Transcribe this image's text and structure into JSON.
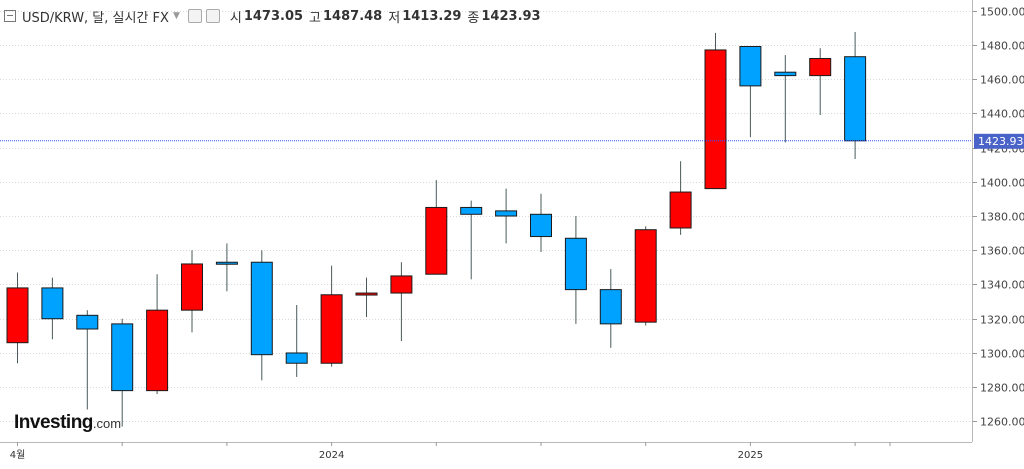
{
  "header": {
    "title": "USD/KRW, 달, 실시간 FX",
    "open_label": "시",
    "open_value": "1473.05",
    "high_label": "고",
    "high_value": "1487.48",
    "low_label": "저",
    "low_value": "1413.29",
    "close_label": "종",
    "close_value": "1423.93"
  },
  "logo": {
    "brand": "Investing",
    "suffix": ".com"
  },
  "colors": {
    "up": "#ff0000",
    "down": "#00a2ff",
    "wick": "#4a5a5a",
    "price_line": "#3355ff",
    "price_tag": "#4a63c9"
  },
  "chart_data": {
    "type": "candlestick",
    "interval": "monthly",
    "series": [
      {
        "open": 1338,
        "high": 1347,
        "low": 1294,
        "close": 1306,
        "dir": "up"
      },
      {
        "open": 1320,
        "high": 1344,
        "low": 1308,
        "close": 1338,
        "dir": "down"
      },
      {
        "open": 1314,
        "high": 1325,
        "low": 1267,
        "close": 1322,
        "dir": "down"
      },
      {
        "open": 1278,
        "high": 1320,
        "low": 1257,
        "close": 1317,
        "dir": "down"
      },
      {
        "open": 1325,
        "high": 1346,
        "low": 1276,
        "close": 1278,
        "dir": "up"
      },
      {
        "open": 1352,
        "high": 1360,
        "low": 1312,
        "close": 1325,
        "dir": "up"
      },
      {
        "open": 1352,
        "high": 1364,
        "low": 1336,
        "close": 1353,
        "dir": "down"
      },
      {
        "open": 1299,
        "high": 1360,
        "low": 1284,
        "close": 1353,
        "dir": "down"
      },
      {
        "open": 1294,
        "high": 1328,
        "low": 1286,
        "close": 1300,
        "dir": "down"
      },
      {
        "open": 1334,
        "high": 1351,
        "low": 1292,
        "close": 1294,
        "dir": "up"
      },
      {
        "open": 1335,
        "high": 1344,
        "low": 1321,
        "close": 1334,
        "dir": "up"
      },
      {
        "open": 1345,
        "high": 1353,
        "low": 1307,
        "close": 1335,
        "dir": "up"
      },
      {
        "open": 1385,
        "high": 1401,
        "low": 1348,
        "close": 1346,
        "dir": "up"
      },
      {
        "open": 1381,
        "high": 1389,
        "low": 1343,
        "close": 1385,
        "dir": "down"
      },
      {
        "open": 1383,
        "high": 1396,
        "low": 1364,
        "close": 1380,
        "dir": "down"
      },
      {
        "open": 1368,
        "high": 1393,
        "low": 1359,
        "close": 1381,
        "dir": "down"
      },
      {
        "open": 1337,
        "high": 1380,
        "low": 1317,
        "close": 1367,
        "dir": "down"
      },
      {
        "open": 1317,
        "high": 1349,
        "low": 1303,
        "close": 1337,
        "dir": "down"
      },
      {
        "open": 1372,
        "high": 1374,
        "low": 1316,
        "close": 1318,
        "dir": "up"
      },
      {
        "open": 1394,
        "high": 1412,
        "low": 1369,
        "close": 1373,
        "dir": "up"
      },
      {
        "open": 1477,
        "high": 1487,
        "low": 1396,
        "close": 1396,
        "dir": "up"
      },
      {
        "open": 1456,
        "high": 1479,
        "low": 1426,
        "close": 1479,
        "dir": "down"
      },
      {
        "open": 1462,
        "high": 1474,
        "low": 1423,
        "close": 1464,
        "dir": "down"
      },
      {
        "open": 1472,
        "high": 1478,
        "low": 1439,
        "close": 1462,
        "dir": "up"
      },
      {
        "open": 1473.05,
        "high": 1487.48,
        "low": 1413.29,
        "close": 1423.93,
        "dir": "down"
      }
    ],
    "y_ticks": [
      1260,
      1280,
      1300,
      1320,
      1340,
      1360,
      1380,
      1400,
      1420,
      1440,
      1460,
      1480,
      1500
    ],
    "y_tick_labels": [
      "1260.00",
      "1280.00",
      "1300.00",
      "1320.00",
      "1340.00",
      "1360.00",
      "1380.00",
      "1400.00",
      "1420.00",
      "1440.00",
      "1460.00",
      "1480.00",
      "1500.00"
    ],
    "ylim": [
      1248,
      1505
    ],
    "x_labels": [
      {
        "label": "4월",
        "index": 0
      },
      {
        "label": "2024",
        "index": 9
      },
      {
        "label": "2025",
        "index": 21
      }
    ],
    "last_price": 1423.93,
    "last_price_label": "1423.93",
    "grid": "horizontal-dotted"
  }
}
